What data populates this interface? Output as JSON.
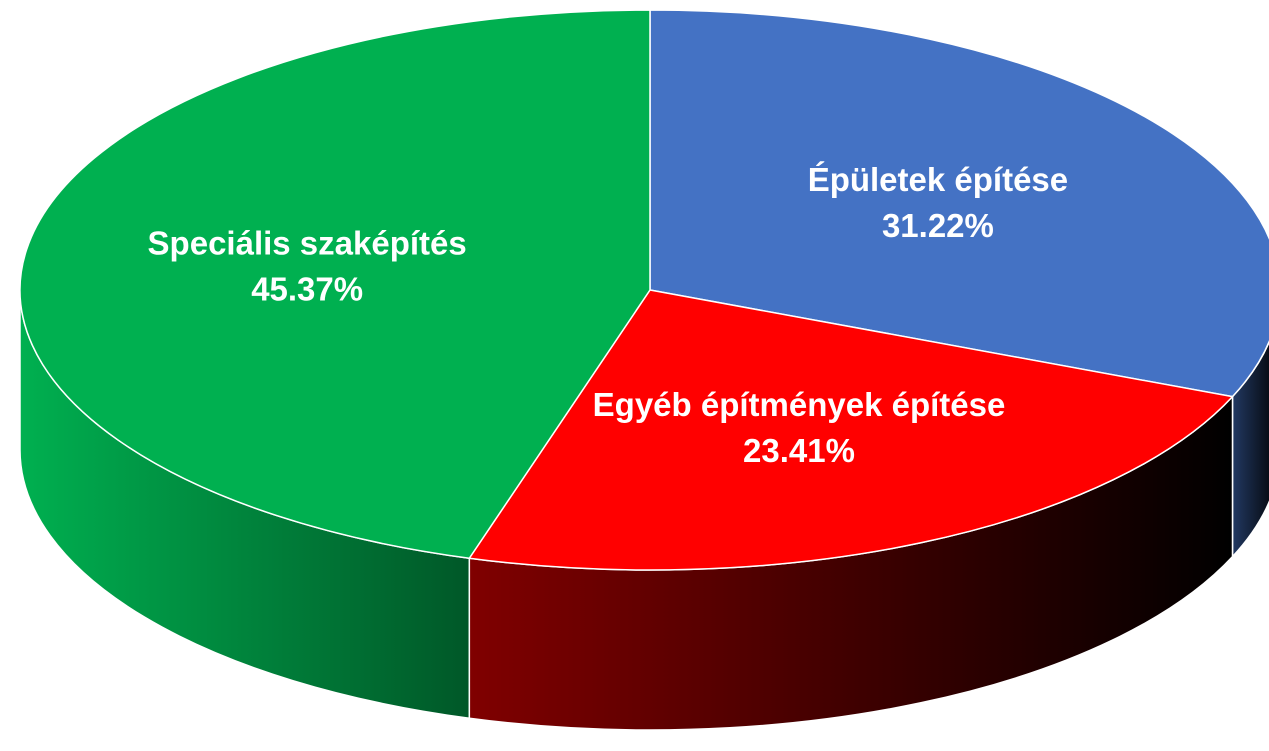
{
  "chart_data": {
    "type": "pie",
    "categories": [
      "Épületek építése",
      "Egyéb építmények építése",
      "Speciális szaképítés"
    ],
    "values": [
      31.22,
      23.41,
      45.37
    ],
    "value_labels": [
      "31.22%",
      "23.41%",
      "45.37%"
    ],
    "colors": [
      "#4472c4",
      "#ff0000",
      "#00b050"
    ]
  }
}
